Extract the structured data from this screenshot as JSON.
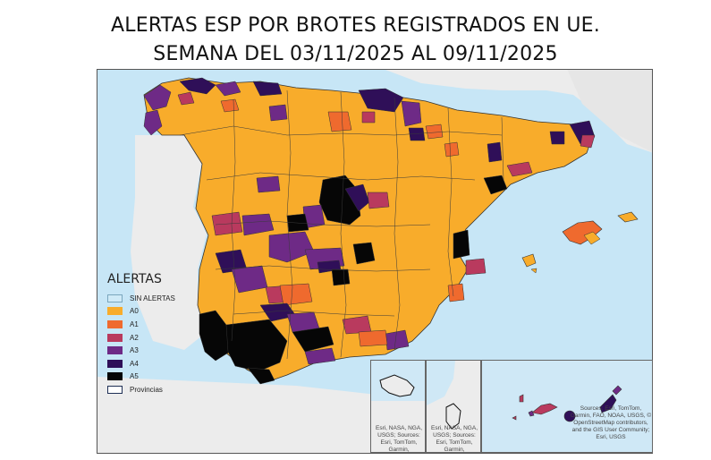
{
  "title": {
    "line1": "ALERTAS ESP POR BROTES REGISTRADOS EN UE.",
    "line2": "SEMANA DEL 03/11/2025 AL 09/11/2025"
  },
  "legend": {
    "title": "ALERTAS",
    "items": [
      {
        "label": "SIN ALERTAS",
        "color": "#cfeaf7",
        "border": "#7aa6bd"
      },
      {
        "label": "A0",
        "color": "#f8ac2b",
        "border": "#f8ac2b"
      },
      {
        "label": "A1",
        "color": "#ef6a2e",
        "border": "#ef6a2e"
      },
      {
        "label": "A2",
        "color": "#b93a5e",
        "border": "#b93a5e"
      },
      {
        "label": "A3",
        "color": "#6e2a86",
        "border": "#6e2a86"
      },
      {
        "label": "A4",
        "color": "#2f0f58",
        "border": "#2f0f58"
      },
      {
        "label": "A5",
        "color": "#060606",
        "border": "#060606"
      },
      {
        "label": "Provincias",
        "color": "#ffffff",
        "border": "#1e2f55"
      }
    ]
  },
  "map": {
    "sea_color": "#c7e6f6",
    "land_color": "#eeeeee",
    "outline_color": "#333333"
  },
  "insets": {
    "ceuta_credit": "Esri, NASA, NGA, USGS; Sources: Esri, TomTom, Garmin,",
    "melilla_credit": "Esri, NASA, NGA, USGS; Sources: Esri, TomTom, Garmin,",
    "canarias_credit": "Sources: Esri, TomTom, Garmin, FAO, NOAA, USGS, © OpenStreetMap contributors, and the GIS User Community; Esri, USGS"
  }
}
